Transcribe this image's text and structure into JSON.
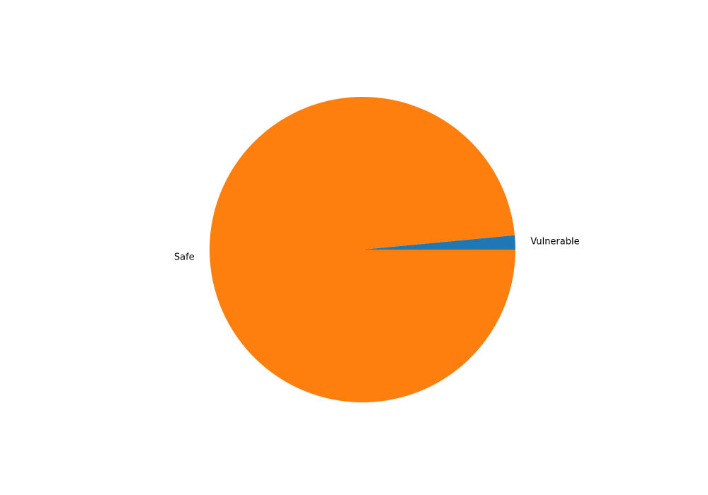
{
  "chart_data": {
    "type": "pie",
    "categories": [
      "Vulnerable",
      "Safe"
    ],
    "values": [
      1.5,
      98.5
    ],
    "colors": [
      "#1f77b4",
      "#ff7f0e"
    ],
    "start_angle_deg": 0,
    "direction": "counterclockwise",
    "title": "",
    "legend": "none"
  }
}
